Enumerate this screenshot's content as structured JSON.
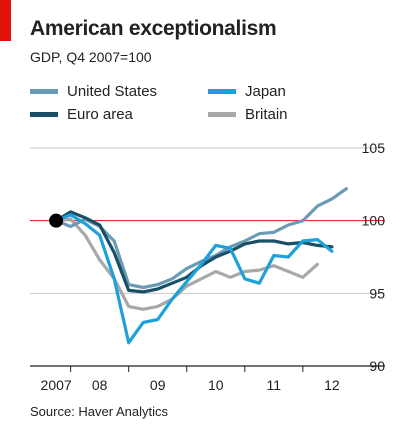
{
  "header": {
    "title": "American exceptionalism",
    "subtitle": "GDP, Q4 2007=100"
  },
  "source": "Source: Haver Analytics",
  "colors": {
    "accent": "#e3120b",
    "baseline": "#e3120b",
    "grid": "#c8c8c8",
    "marker": "#000000"
  },
  "chart_data": {
    "type": "line",
    "title": "American exceptionalism",
    "subtitle": "GDP, Q4 2007=100",
    "xlabel": "",
    "ylabel": "",
    "ylim": [
      90,
      105
    ],
    "yticks": [
      90,
      95,
      100,
      105
    ],
    "xticks": [
      {
        "label": "2007",
        "x": 2007.75
      },
      {
        "label": "08",
        "x": 2008.5
      },
      {
        "label": "09",
        "x": 2009.5
      },
      {
        "label": "10",
        "x": 2010.5
      },
      {
        "label": "11",
        "x": 2011.5
      },
      {
        "label": "12",
        "x": 2012.5
      }
    ],
    "xlim": [
      2007.3,
      2012.95
    ],
    "x": [
      2007.75,
      2008.0,
      2008.25,
      2008.5,
      2008.75,
      2009.0,
      2009.25,
      2009.5,
      2009.75,
      2010.0,
      2010.25,
      2010.5,
      2010.75,
      2011.0,
      2011.25,
      2011.5,
      2011.75,
      2012.0,
      2012.25,
      2012.5,
      2012.75
    ],
    "grid": true,
    "baseline": 100,
    "marker": {
      "x": 2007.75,
      "y": 100
    },
    "legend_position": "top",
    "series": [
      {
        "name": "United States",
        "color": "#6a9bb4",
        "values": [
          100.0,
          99.6,
          100.1,
          99.6,
          98.6,
          95.6,
          95.4,
          95.6,
          96.0,
          96.7,
          97.2,
          97.6,
          98.2,
          98.6,
          99.1,
          99.2,
          99.7,
          100.0,
          101.0,
          101.5,
          102.2
        ]
      },
      {
        "name": "Japan",
        "color": "#1ea1d8",
        "values": [
          100.0,
          100.4,
          99.8,
          99.0,
          96.0,
          91.6,
          93.0,
          93.2,
          94.6,
          95.8,
          97.0,
          98.3,
          98.1,
          96.0,
          95.7,
          97.6,
          97.5,
          98.6,
          98.7,
          97.9,
          null
        ]
      },
      {
        "name": "Euro area",
        "color": "#1b4e67",
        "values": [
          100.0,
          100.6,
          100.2,
          99.7,
          97.8,
          95.2,
          95.1,
          95.3,
          95.7,
          96.1,
          96.9,
          97.5,
          97.9,
          98.4,
          98.6,
          98.6,
          98.4,
          98.5,
          98.3,
          98.2,
          null
        ]
      },
      {
        "name": "Britain",
        "color": "#a8a8a8",
        "values": [
          100.0,
          100.1,
          99.0,
          97.3,
          96.0,
          94.1,
          93.9,
          94.1,
          94.6,
          95.5,
          96.0,
          96.5,
          96.1,
          96.5,
          96.6,
          96.9,
          96.5,
          96.1,
          97.0,
          null,
          null
        ]
      }
    ]
  }
}
